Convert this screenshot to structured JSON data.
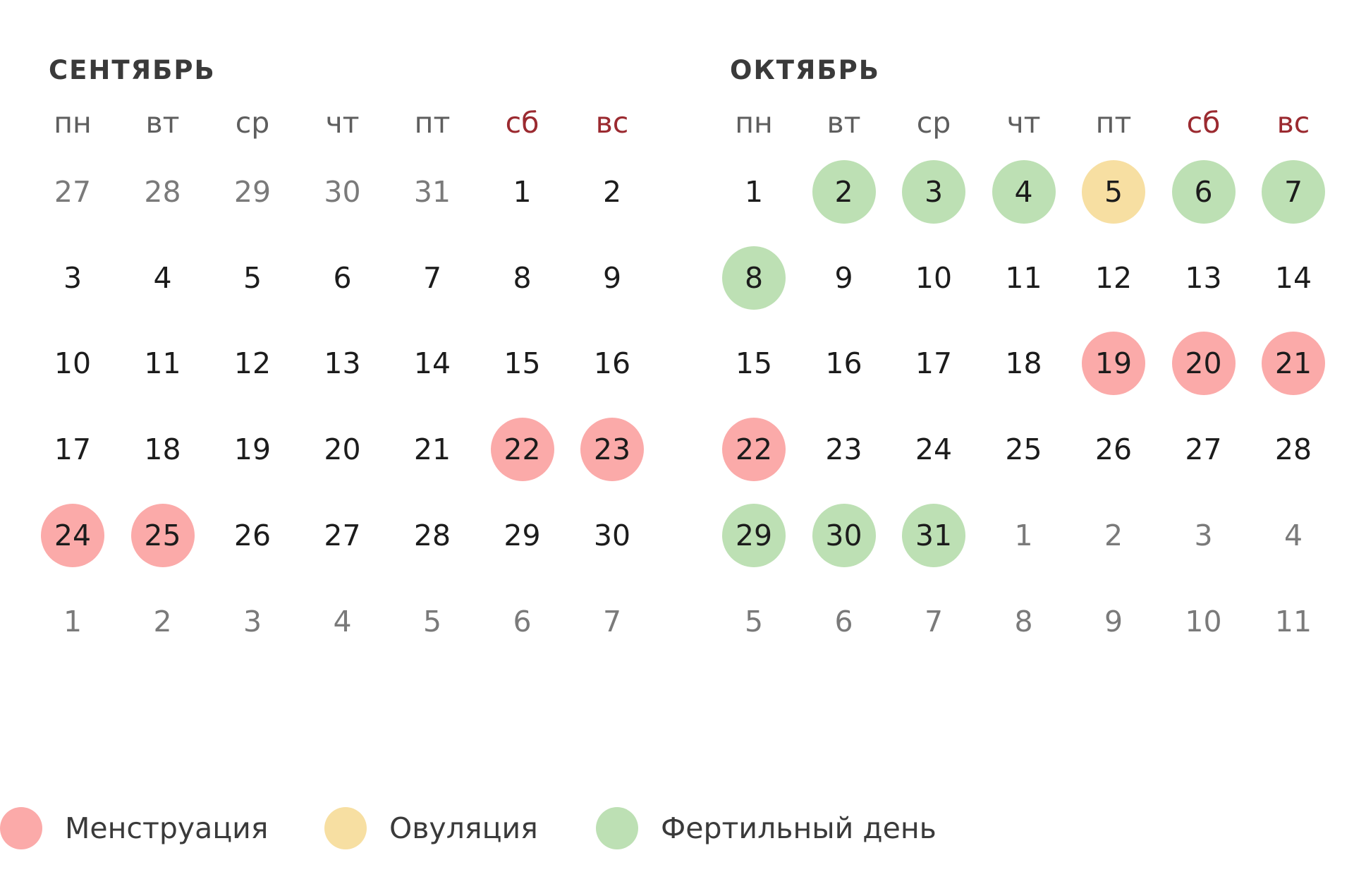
{
  "colors": {
    "menstruation": "#fbaaa9",
    "ovulation": "#f7dfa2",
    "fertile": "#bde0b4",
    "weekend_text": "#9b2a30",
    "text": "#1c1c1c",
    "muted_text": "#7a7a7a"
  },
  "weekdays": [
    {
      "label": "пн",
      "weekend": false
    },
    {
      "label": "вт",
      "weekend": false
    },
    {
      "label": "ср",
      "weekend": false
    },
    {
      "label": "чт",
      "weekend": false
    },
    {
      "label": "пт",
      "weekend": false
    },
    {
      "label": "сб",
      "weekend": true
    },
    {
      "label": "вс",
      "weekend": true
    }
  ],
  "months": [
    {
      "title": "СЕНТЯБРЬ",
      "weeks": [
        [
          {
            "d": "27",
            "o": true
          },
          {
            "d": "28",
            "o": true
          },
          {
            "d": "29",
            "o": true
          },
          {
            "d": "30",
            "o": true
          },
          {
            "d": "31",
            "o": true
          },
          {
            "d": "1"
          },
          {
            "d": "2"
          }
        ],
        [
          {
            "d": "3"
          },
          {
            "d": "4"
          },
          {
            "d": "5"
          },
          {
            "d": "6"
          },
          {
            "d": "7"
          },
          {
            "d": "8"
          },
          {
            "d": "9"
          }
        ],
        [
          {
            "d": "10"
          },
          {
            "d": "11"
          },
          {
            "d": "12"
          },
          {
            "d": "13"
          },
          {
            "d": "14"
          },
          {
            "d": "15"
          },
          {
            "d": "16"
          }
        ],
        [
          {
            "d": "17"
          },
          {
            "d": "18"
          },
          {
            "d": "19"
          },
          {
            "d": "20"
          },
          {
            "d": "21"
          },
          {
            "d": "22",
            "m": "menstruation"
          },
          {
            "d": "23",
            "m": "menstruation"
          }
        ],
        [
          {
            "d": "24",
            "m": "menstruation"
          },
          {
            "d": "25",
            "m": "menstruation"
          },
          {
            "d": "26"
          },
          {
            "d": "27"
          },
          {
            "d": "28"
          },
          {
            "d": "29"
          },
          {
            "d": "30"
          }
        ],
        [
          {
            "d": "1",
            "o": true
          },
          {
            "d": "2",
            "o": true
          },
          {
            "d": "3",
            "o": true
          },
          {
            "d": "4",
            "o": true
          },
          {
            "d": "5",
            "o": true
          },
          {
            "d": "6",
            "o": true
          },
          {
            "d": "7",
            "o": true
          }
        ]
      ]
    },
    {
      "title": "ОКТЯБРЬ",
      "weeks": [
        [
          {
            "d": "1"
          },
          {
            "d": "2",
            "m": "fertile"
          },
          {
            "d": "3",
            "m": "fertile"
          },
          {
            "d": "4",
            "m": "fertile"
          },
          {
            "d": "5",
            "m": "ovulation"
          },
          {
            "d": "6",
            "m": "fertile"
          },
          {
            "d": "7",
            "m": "fertile"
          }
        ],
        [
          {
            "d": "8",
            "m": "fertile"
          },
          {
            "d": "9"
          },
          {
            "d": "10"
          },
          {
            "d": "11"
          },
          {
            "d": "12"
          },
          {
            "d": "13"
          },
          {
            "d": "14"
          }
        ],
        [
          {
            "d": "15"
          },
          {
            "d": "16"
          },
          {
            "d": "17"
          },
          {
            "d": "18"
          },
          {
            "d": "19",
            "m": "menstruation"
          },
          {
            "d": "20",
            "m": "menstruation"
          },
          {
            "d": "21",
            "m": "menstruation"
          }
        ],
        [
          {
            "d": "22",
            "m": "menstruation"
          },
          {
            "d": "23"
          },
          {
            "d": "24"
          },
          {
            "d": "25"
          },
          {
            "d": "26"
          },
          {
            "d": "27"
          },
          {
            "d": "28"
          }
        ],
        [
          {
            "d": "29",
            "m": "fertile"
          },
          {
            "d": "30",
            "m": "fertile"
          },
          {
            "d": "31",
            "m": "fertile"
          },
          {
            "d": "1",
            "o": true
          },
          {
            "d": "2",
            "o": true
          },
          {
            "d": "3",
            "o": true
          },
          {
            "d": "4",
            "o": true
          }
        ],
        [
          {
            "d": "5",
            "o": true
          },
          {
            "d": "6",
            "o": true
          },
          {
            "d": "7",
            "o": true
          },
          {
            "d": "8",
            "o": true
          },
          {
            "d": "9",
            "o": true
          },
          {
            "d": "10",
            "o": true
          },
          {
            "d": "11",
            "o": true
          }
        ]
      ]
    }
  ],
  "legend": [
    {
      "label": "Менструация",
      "type": "menstruation"
    },
    {
      "label": "Овуляция",
      "type": "ovulation"
    },
    {
      "label": "Фертильный день",
      "type": "fertile"
    }
  ]
}
